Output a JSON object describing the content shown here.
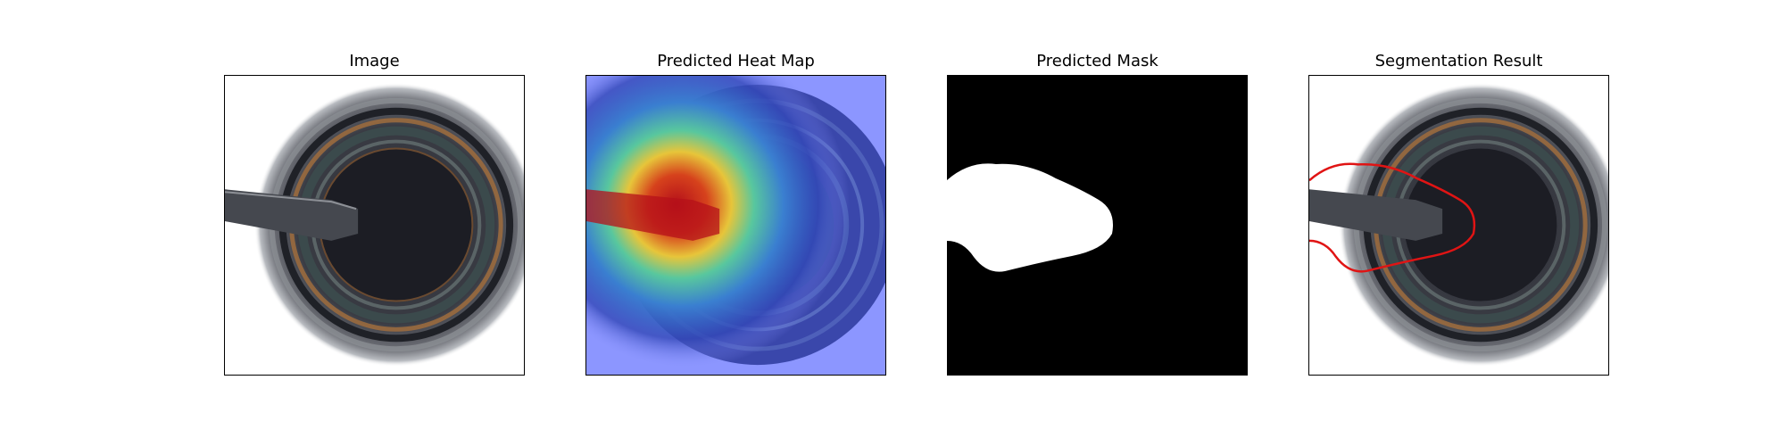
{
  "figure": {
    "panels": [
      {
        "title": "Image"
      },
      {
        "title": "Predicted Heat Map"
      },
      {
        "title": "Predicted Mask"
      },
      {
        "title": "Segmentation Result"
      }
    ],
    "colors": {
      "background": "#ffffff",
      "frame": "#000000",
      "contour": "#e01414",
      "mask_fg": "#ffffff",
      "mask_bg": "#000000",
      "heat_hot": "#c81e1e",
      "heat_cold": "#8c96ff"
    }
  }
}
